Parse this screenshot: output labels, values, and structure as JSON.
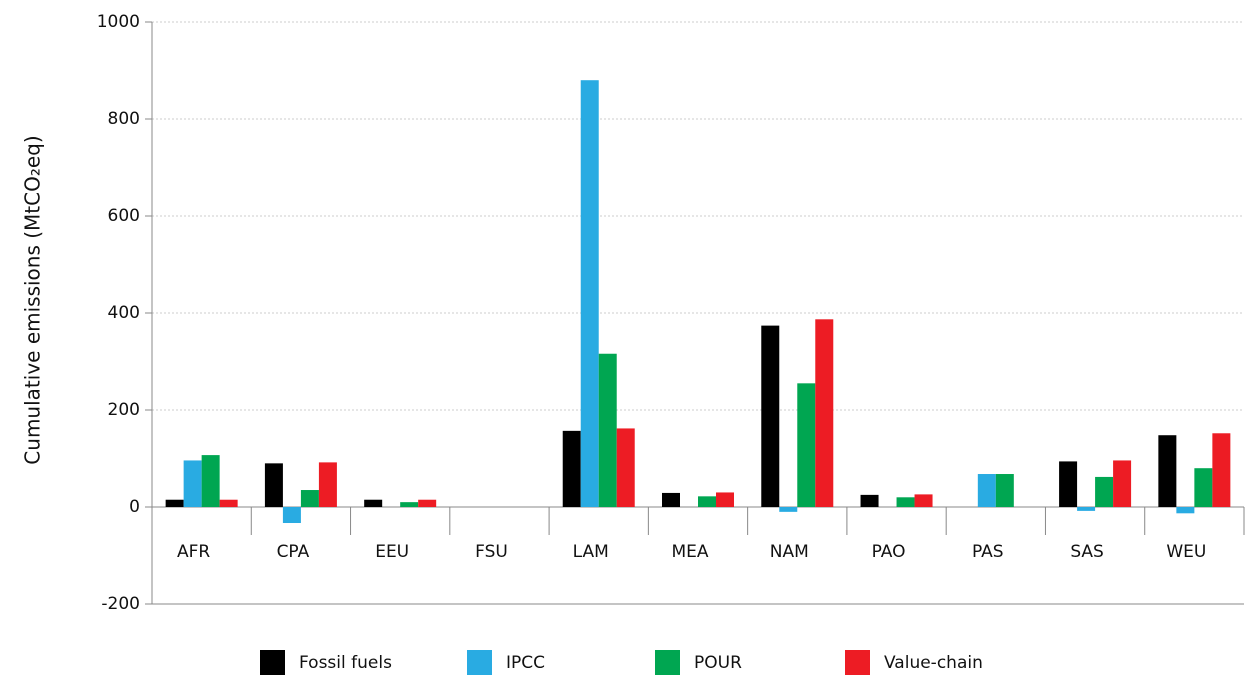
{
  "chart_data": {
    "type": "bar",
    "y_label": "Cumulative emissions (MtCO₂eq)",
    "categories": [
      "AFR",
      "CPA",
      "EEU",
      "FSU",
      "LAM",
      "MEA",
      "NAM",
      "PAO",
      "PAS",
      "SAS",
      "WEU"
    ],
    "series": [
      {
        "name": "Fossil fuels",
        "color": "#000000",
        "values": [
          15,
          90,
          15,
          0,
          157,
          29,
          374,
          25,
          0,
          94,
          148
        ]
      },
      {
        "name": "IPCC",
        "color": "#29abe2",
        "values": [
          96,
          -33,
          0,
          0,
          880,
          0,
          -10,
          0,
          68,
          -8,
          -13
        ]
      },
      {
        "name": "POUR",
        "color": "#00a651",
        "values": [
          107,
          35,
          10,
          0,
          316,
          22,
          255,
          20,
          68,
          62,
          80
        ]
      },
      {
        "name": "Value-chain",
        "color": "#ed1c24",
        "values": [
          15,
          92,
          15,
          0,
          162,
          30,
          387,
          26,
          0,
          96,
          152
        ]
      }
    ],
    "ylim": [
      -200,
      1000
    ],
    "yticks": [
      -200,
      0,
      200,
      400,
      600,
      800,
      1000
    ],
    "grid": true
  }
}
